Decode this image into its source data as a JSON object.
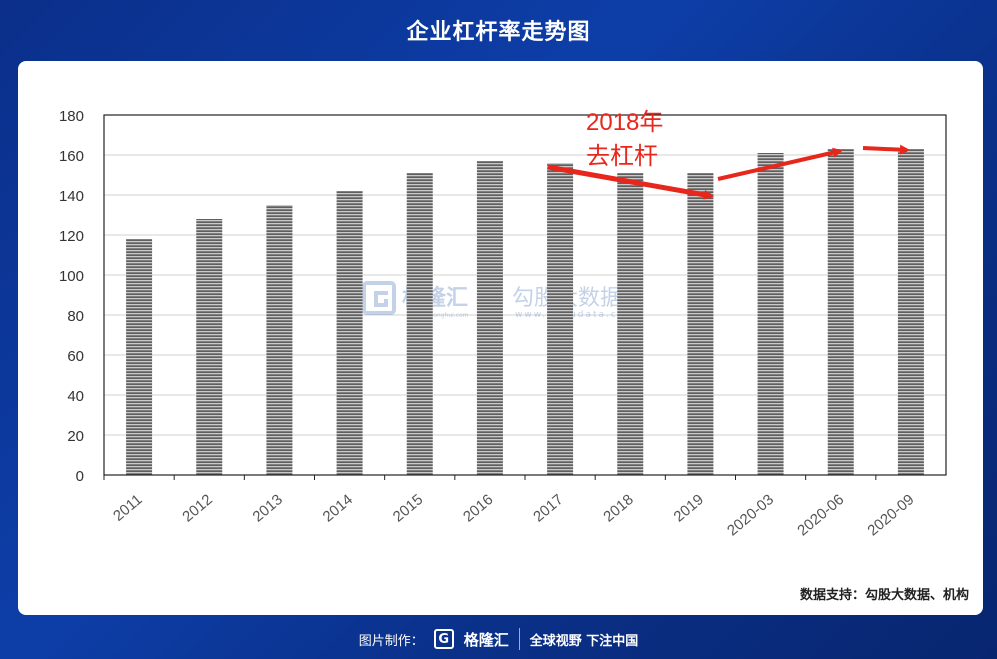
{
  "page": {
    "title": "企业杠杆率走势图",
    "source": "数据支持：勾股大数据、机构"
  },
  "watermark": {
    "brand": "格隆汇",
    "brand_url": "www.gelonghui.com",
    "data_brand": "勾股大数据",
    "data_url": "www.gogudata.com"
  },
  "footer": {
    "made_by": "图片制作：",
    "logo_letter": "G",
    "logo_text": "格隆汇",
    "slogan": "全球视野 下注中国"
  },
  "chart_data": {
    "type": "bar",
    "categories": [
      "2011",
      "2012",
      "2013",
      "2014",
      "2015",
      "2016",
      "2017",
      "2018",
      "2019",
      "2020-03",
      "2020-06",
      "2020-09"
    ],
    "values": [
      118,
      128,
      135,
      142,
      151,
      157,
      156,
      151,
      151,
      161,
      163,
      163
    ],
    "ylim": [
      0,
      180
    ],
    "yticks": [
      0,
      20,
      40,
      60,
      80,
      100,
      120,
      140,
      160,
      180
    ],
    "grid": true,
    "annotation": {
      "line1": "2018年",
      "line2": "去杠杆"
    },
    "colors": {
      "bar": "#8e8e8e",
      "annotation": "#e8271c"
    }
  }
}
